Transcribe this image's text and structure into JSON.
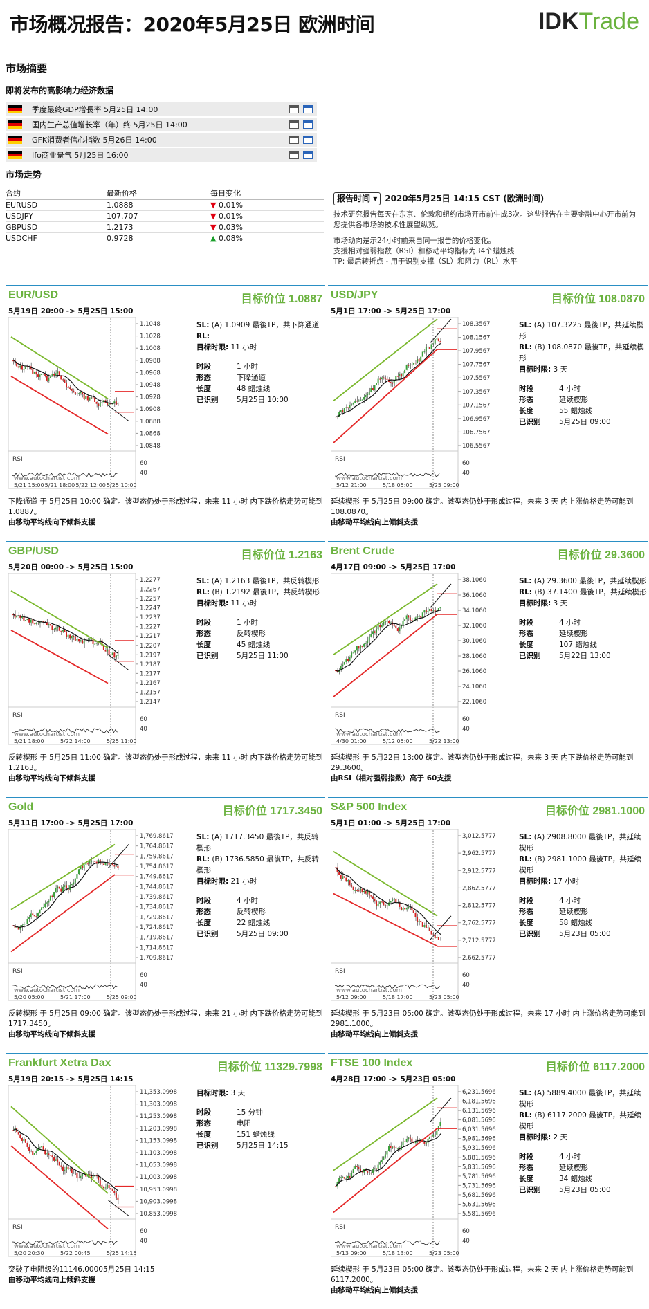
{
  "header": {
    "title": "市场概况报告：2020年5月25日 欧洲时间",
    "logo_a": "IDK",
    "logo_b": "Trade"
  },
  "summary": {
    "title": "市场摘要",
    "events_title": "即将发布的高影响力经济数据",
    "events": [
      {
        "text": "季度最终GDP增長率 5月25日 14:00"
      },
      {
        "text": "国内生产总值增长率（年）终 5月25日 14:00"
      },
      {
        "text": "GFK消费者信心指数 5月26日 14:00"
      },
      {
        "text": "Ifo商业景气 5月25日 16:00"
      }
    ]
  },
  "trend": {
    "title": "市场走势",
    "headers": [
      "合约",
      "最新价格",
      "每日变化"
    ],
    "rows": [
      {
        "pair": "EURUSD",
        "price": "1.0888",
        "change": "0.01%",
        "dir": "down"
      },
      {
        "pair": "USDJPY",
        "price": "107.707",
        "change": "0.01%",
        "dir": "down"
      },
      {
        "pair": "GBPUSD",
        "price": "1.2173",
        "change": "0.03%",
        "dir": "down"
      },
      {
        "pair": "USDCHF",
        "price": "0.9728",
        "change": "0.08%",
        "dir": "up"
      }
    ]
  },
  "report": {
    "button": "报告时间",
    "time": "2020年5月25日 14:15 CST (欧洲时间)",
    "line1": "技术研究报告每天在东京、伦敦和纽约市场开市前生成3次。这些报告在主要金融中心开市前为您提供各市场的技术性展望纵览。",
    "line2": "市场动向是示24小时前来自同一报告的价格变化。",
    "line3": "支援相对强弱指数（RSI）和移动平均指标为34个蜡烛线",
    "line4": "TP: 最后转折点 - 用于识别支撑（SL）和阻力（RL）水平"
  },
  "labels": {
    "period": "时段",
    "pattern": "形态",
    "length": "长度",
    "identified": "已识别",
    "target_time": "目标时限:"
  },
  "panels": [
    {
      "name": "EUR/USD",
      "target": "目标价位 1.0887",
      "range": "5月19日 20:00 -> 5月25日 15:00",
      "sl": "",
      "rl": "",
      "sl_label": "SL:",
      "rl_label": "RL:",
      "sl_text": "(A) 1.0909 最後TP，共下降通道",
      "rl_text": "",
      "target_time": "11 小时",
      "period": "1 小时",
      "pattern": "下降通道",
      "length": "48 蜡烛线",
      "identified": "5月25日 10:00",
      "desc": "下降通道 于 5月25日 10:00 确定。该型态仍处于形成过程，未来 11 小时 内下跌价格走势可能到 1.0887。",
      "note": "由移动平均线向下倾斜支援",
      "yticks": [
        "1.1048",
        "1.1028",
        "1.1008",
        "1.0988",
        "1.0968",
        "1.0948",
        "1.0928",
        "1.0908",
        "1.0888",
        "1.0868",
        "1.0848"
      ],
      "xticks": [
        "5/21 15:00",
        "5/21 18:00",
        "5/22 12:00",
        "5/25 10:00"
      ],
      "rsi_ticks": [
        "60",
        "40"
      ],
      "rsi": "RSI",
      "watermark": "www.autochartist.com"
    },
    {
      "name": "USD/JPY",
      "target": "目标价位 108.0870",
      "range": "5月1日 17:00 -> 5月25日 17:00",
      "sl_label": "SL:",
      "rl_label": "RL:",
      "sl_text": "(A) 107.3225 最後TP，共延续楔形",
      "rl_text": "(B) 108.0870 最後TP，共延续楔形",
      "target_time": "3 天",
      "period": "4 小时",
      "pattern": "延续楔形",
      "length": "55 蜡烛线",
      "identified": "5月25日 09:00",
      "desc": "延续楔形 于 5月25日 09:00 确定。该型态仍处于形成过程，未来 3 天 内上涨价格走势可能到 108.0870。",
      "note": "由移动平均线向上倾斜支援",
      "yticks": [
        "108.3567",
        "108.1567",
        "107.9567",
        "107.7567",
        "107.5567",
        "107.3567",
        "107.1567",
        "106.9567",
        "106.7567",
        "106.5567"
      ],
      "xticks": [
        "5/12 21:00",
        "5/18 05:00",
        "5/25 09:00"
      ],
      "rsi_ticks": [
        "60",
        "40"
      ],
      "rsi": "RSI",
      "watermark": "www.autochartist.com"
    },
    {
      "name": "GBP/USD",
      "target": "目标价位 1.2163",
      "range": "5月20日 00:00 -> 5月25日 15:00",
      "sl_label": "SL:",
      "rl_label": "RL:",
      "sl_text": "(A) 1.2163 最後TP，共反转楔形",
      "rl_text": "(B) 1.2192 最後TP，共反转楔形",
      "target_time": "11 小时",
      "period": "1 小时",
      "pattern": "反转楔形",
      "length": "45 蜡烛线",
      "identified": "5月25日 11:00",
      "desc": "反转楔形 于 5月25日 11:00 确定。该型态仍处于形成过程，未来 11 小时 内下跌价格走势可能到 1.2163。",
      "note": "由移动平均线向下倾斜支援",
      "yticks": [
        "1.2277",
        "1.2267",
        "1.2257",
        "1.2247",
        "1.2237",
        "1.2227",
        "1.2217",
        "1.2207",
        "1.2197",
        "1.2187",
        "1.2177",
        "1.2167",
        "1.2157",
        "1.2147"
      ],
      "xticks": [
        "5/21 18:00",
        "5/22 14:00",
        "5/25 11:00"
      ],
      "rsi_ticks": [
        "60",
        "40"
      ],
      "rsi": "RSI",
      "watermark": "www.autochartist.com"
    },
    {
      "name": "Brent Crude",
      "target": "目标价位 29.3600",
      "range": "4月17日 09:00 -> 5月25日 17:00",
      "sl_label": "SL:",
      "rl_label": "RL:",
      "sl_text": "(A) 29.3600 最後TP，共延续楔形",
      "rl_text": "(B) 37.1400 最後TP，共延续楔形",
      "target_time": "3 天",
      "period": "4 小时",
      "pattern": "延续楔形",
      "length": "107 蜡烛线",
      "identified": "5月22日 13:00",
      "desc": "延续楔形 于 5月22日 13:00 确定。该型态仍处于形成过程，未来 3 天 内下跌价格走势可能到 29.3600。",
      "note": "由RSI（相对强弱指数）高于 60支援",
      "yticks": [
        "38.1060",
        "36.1060",
        "34.1060",
        "32.1060",
        "30.1060",
        "28.1060",
        "26.1060",
        "24.1060",
        "22.1060"
      ],
      "xticks": [
        "4/30 01:00",
        "5/12 05:00",
        "5/22 13:00"
      ],
      "rsi_ticks": [
        "60",
        "40"
      ],
      "rsi": "RSI",
      "watermark": "www.autochartist.com"
    },
    {
      "name": "Gold",
      "target": "目标价位 1717.3450",
      "range": "5月11日 17:00 -> 5月25日 17:00",
      "sl_label": "SL:",
      "rl_label": "RL:",
      "sl_text": "(A) 1717.3450 最後TP，共反转楔形",
      "rl_text": "(B) 1736.5850 最後TP，共反转楔形",
      "target_time": "21 小时",
      "period": "4 小时",
      "pattern": "反转楔形",
      "length": "22 蜡烛线",
      "identified": "5月25日 09:00",
      "desc": "反转楔形 于 5月25日 09:00 确定。该型态仍处于形成过程，未来 21 小时 内下跌价格走势可能到 1717.3450。",
      "note": "由移动平均线向下倾斜支援",
      "yticks": [
        "1,769.8617",
        "1,764.8617",
        "1,759.8617",
        "1,754.8617",
        "1,749.8617",
        "1,744.8617",
        "1,739.8617",
        "1,734.8617",
        "1,729.8617",
        "1,724.8617",
        "1,719.8617",
        "1,714.8617",
        "1,709.8617"
      ],
      "xticks": [
        "5/20 05:00",
        "5/21 17:00",
        "5/25 09:00"
      ],
      "rsi_ticks": [
        "60",
        "40"
      ],
      "rsi": "RSI",
      "watermark": "www.autochartist.com"
    },
    {
      "name": "S&P 500 Index",
      "target": "目标价位 2981.1000",
      "range": "5月1日 01:00 -> 5月25日 17:00",
      "sl_label": "SL:",
      "rl_label": "RL:",
      "sl_text": "(A) 2908.8000 最後TP，共延续楔形",
      "rl_text": "(B) 2981.1000 最後TP，共延续楔形",
      "target_time": "17 小时",
      "period": "4 小时",
      "pattern": "延续楔形",
      "length": "58 蜡烛线",
      "identified": "5月23日 05:00",
      "desc": "延续楔形 于 5月23日 05:00 确定。该型态仍处于形成过程，未来 17 小时 内上涨价格走势可能到 2981.1000。",
      "note": "由移动平均线向上倾斜支援",
      "yticks": [
        "3,012.5777",
        "2,962.5777",
        "2,912.5777",
        "2,862.5777",
        "2,812.5777",
        "2,762.5777",
        "2,712.5777",
        "2,662.5777"
      ],
      "xticks": [
        "5/12 09:00",
        "5/18 17:00",
        "5/23 05:00"
      ],
      "rsi_ticks": [
        "60",
        "40"
      ],
      "rsi": "RSI",
      "watermark": "www.autochartist.com"
    },
    {
      "name": "Frankfurt Xetra Dax",
      "target": "目标价位 11329.7998",
      "range": "5月19日 20:15 -> 5月25日 14:15",
      "sl_label": "",
      "rl_label": "",
      "sl_text": "",
      "rl_text": "",
      "target_time": "3 天",
      "period": "15 分钟",
      "pattern": "电阻",
      "length": "151 蜡烛线",
      "identified": "5月25日 14:15",
      "desc": "突破了电阻级的11146.00005月25日 14:15",
      "note": "由移动平均线向上倾斜支援",
      "yticks": [
        "11,353.0998",
        "11,303.0998",
        "11,253.0998",
        "11,203.0998",
        "11,153.0998",
        "11,103.0998",
        "11,053.0998",
        "11,003.0998",
        "10,953.0998",
        "10,903.0998",
        "10,853.0998"
      ],
      "xticks": [
        "5/20 20:30",
        "5/22 00:45",
        "5/25 14:15"
      ],
      "rsi_ticks": [
        "60",
        "40"
      ],
      "rsi": "RSI",
      "watermark": "www.autochartist.com"
    },
    {
      "name": "FTSE 100 Index",
      "target": "目标价位 6117.2000",
      "range": "4月28日 17:00 -> 5月23日 05:00",
      "sl_label": "SL:",
      "rl_label": "RL:",
      "sl_text": "(A) 5889.4000 最後TP，共延续楔形",
      "rl_text": "(B) 6117.2000 最後TP，共延续楔形",
      "target_time": "2 天",
      "period": "4 小时",
      "pattern": "延续楔形",
      "length": "34 蜡烛线",
      "identified": "5月23日 05:00",
      "desc": "延续楔形 于 5月23日 05:00 确定。该型态仍处于形成过程，未来 2 天 内上涨价格走势可能到 6117.2000。",
      "note": "由移动平均线向上倾斜支援",
      "yticks": [
        "6,231.5696",
        "6,181.5696",
        "6,131.5696",
        "6,081.5696",
        "6,031.5696",
        "5,981.5696",
        "5,931.5696",
        "5,881.5696",
        "5,831.5696",
        "5,781.5696",
        "5,731.5696",
        "5,681.5696",
        "5,631.5696",
        "5,581.5696"
      ],
      "xticks": [
        "5/13 09:00",
        "5/18 13:00",
        "5/23 05:00"
      ],
      "rsi_ticks": [
        "60",
        "40"
      ],
      "rsi": "RSI",
      "watermark": "www.autochartist.com"
    }
  ]
}
